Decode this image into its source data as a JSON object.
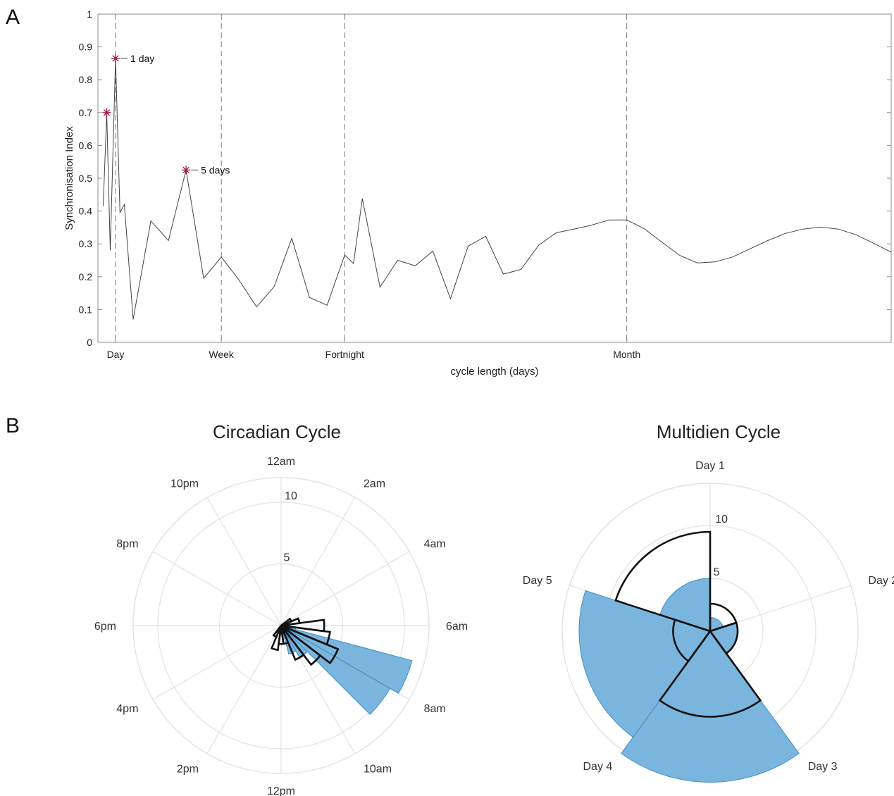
{
  "panels": {
    "a": "A",
    "b": "B"
  },
  "chart_data": [
    {
      "type": "line",
      "panel": "A",
      "xlabel": "cycle length (days)",
      "ylabel": "Synchronisation Index",
      "xlim": [
        0,
        45
      ],
      "ylim": [
        0,
        1
      ],
      "yticks": [
        0,
        0.1,
        0.2,
        0.3,
        0.4,
        0.5,
        0.6,
        0.7,
        0.8,
        0.9,
        1
      ],
      "ytick_labels": [
        "0",
        "0.1",
        "0.2",
        "0.3",
        "0.4",
        "0.5",
        "0.6",
        "0.7",
        "0.8",
        "0.9",
        "1"
      ],
      "reference_lines": [
        {
          "x": 1,
          "label": "Day"
        },
        {
          "x": 7,
          "label": "Week"
        },
        {
          "x": 14,
          "label": "Fortnight"
        },
        {
          "x": 30,
          "label": "Month"
        }
      ],
      "series": [
        {
          "x": [
            0.3,
            0.5,
            0.7,
            1.0,
            1.25,
            1.5,
            2.0,
            3.0,
            4.0,
            5.0,
            6.0,
            7.0,
            8.0,
            9.0,
            10.0,
            11.0,
            12.0,
            13.0,
            14.0,
            14.5,
            15.0,
            16.0,
            17.0,
            18.0,
            19.0,
            20.0,
            21.0,
            22.0,
            23.0,
            24.0,
            25.0,
            26.0,
            27.0,
            28.0,
            29.0,
            30.0,
            31.0,
            32.0,
            33.0,
            34.0,
            35.0,
            36.0,
            37.0,
            38.0,
            39.0,
            40.0,
            41.0,
            42.0,
            43.0,
            44.0,
            45.0
          ],
          "y": [
            0.415,
            0.7,
            0.28,
            0.865,
            0.395,
            0.42,
            0.07,
            0.37,
            0.31,
            0.525,
            0.195,
            0.26,
            0.19,
            0.108,
            0.17,
            0.317,
            0.137,
            0.113,
            0.266,
            0.24,
            0.438,
            0.168,
            0.25,
            0.233,
            0.278,
            0.133,
            0.293,
            0.323,
            0.208,
            0.222,
            0.296,
            0.334,
            0.345,
            0.357,
            0.373,
            0.373,
            0.346,
            0.305,
            0.265,
            0.242,
            0.245,
            0.26,
            0.285,
            0.31,
            0.332,
            0.345,
            0.351,
            0.345,
            0.328,
            0.302,
            0.275
          ]
        }
      ],
      "markers": [
        {
          "x": 0.5,
          "y": 0.7,
          "label": ""
        },
        {
          "x": 1.0,
          "y": 0.865,
          "label": "1 day"
        },
        {
          "x": 5.0,
          "y": 0.525,
          "label": "5 days"
        }
      ],
      "marker_color": "#a0144a",
      "line_color": "#444444",
      "grid": false
    },
    {
      "type": "polar-histogram",
      "panel": "B",
      "title": "Circadian Cycle",
      "rmax": 12,
      "rticks": [
        5,
        10
      ],
      "rtick_labels": [
        "5",
        "10"
      ],
      "angle_labels": [
        "12am",
        "2am",
        "4am",
        "6am",
        "8am",
        "10am",
        "12pm",
        "2pm",
        "4pm",
        "6pm",
        "8pm",
        "10pm"
      ],
      "bin_width_deg": 15,
      "fill_series": {
        "color": "#7ab5dd",
        "edge_color": "#3f8fc9",
        "bins": [
          {
            "start": 82.5,
            "value": 0.6
          },
          {
            "start": 97.5,
            "value": 1.2
          },
          {
            "start": 105,
            "value": 11.0
          },
          {
            "start": 120,
            "value": 10.2
          },
          {
            "start": 135,
            "value": 3.0
          },
          {
            "start": 150,
            "value": 2.4
          },
          {
            "start": 165,
            "value": 0.8
          }
        ]
      },
      "outline_series": {
        "color": "#111111",
        "bins": [
          {
            "start": 52.5,
            "value": 0.9
          },
          {
            "start": 67.5,
            "value": 1.5
          },
          {
            "start": 82.5,
            "value": 3.5
          },
          {
            "start": 97.5,
            "value": 4.0
          },
          {
            "start": 112.5,
            "value": 5.0
          },
          {
            "start": 127.5,
            "value": 4.0
          },
          {
            "start": 142.5,
            "value": 3.0
          },
          {
            "start": 157.5,
            "value": 1.5
          },
          {
            "start": 172.5,
            "value": 1.5
          },
          {
            "start": 187.5,
            "value": 2.0
          },
          {
            "start": 202.5,
            "value": 1.0
          }
        ]
      }
    },
    {
      "type": "polar-histogram",
      "panel": "B",
      "title": "Multidien Cycle",
      "rmax": 14,
      "rticks": [
        5,
        10
      ],
      "rtick_labels": [
        "5",
        "10"
      ],
      "angle_labels": [
        "Day 1",
        "Day 2",
        "Day 3",
        "Day 4",
        "Day 5"
      ],
      "bin_width_deg": 72,
      "fill_series": {
        "color": "#7ab5dd",
        "edge_color": "#3f8fc9",
        "bins": [
          {
            "start": 0,
            "value": 1.3
          },
          {
            "start": 72,
            "value": 2.6
          },
          {
            "start": 144,
            "value": 14.3
          },
          {
            "start": 216,
            "value": 12.4
          },
          {
            "start": 288,
            "value": 5.0
          }
        ]
      },
      "outline_series": {
        "color": "#111111",
        "bins": [
          {
            "start": 0,
            "value": 2.6
          },
          {
            "start": 72,
            "value": 2.6
          },
          {
            "start": 144,
            "value": 8.1
          },
          {
            "start": 216,
            "value": 3.5
          },
          {
            "start": 288,
            "value": 9.4
          }
        ]
      }
    }
  ]
}
